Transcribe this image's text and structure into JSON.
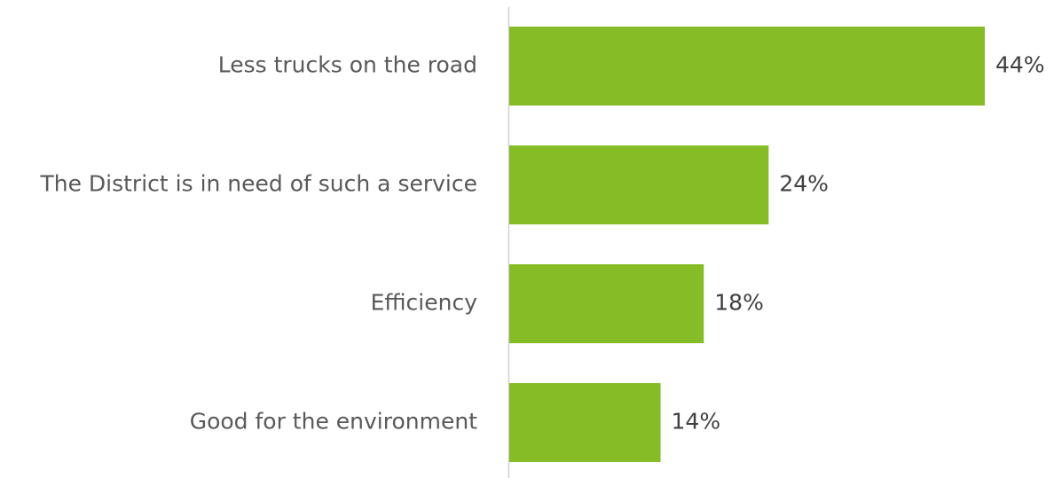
{
  "chart_data": {
    "type": "bar",
    "orientation": "horizontal",
    "categories": [
      "Less trucks on the road",
      "The District is in need of such a service",
      "Efficiency",
      "Good for the environment"
    ],
    "values": [
      44,
      24,
      18,
      14
    ],
    "value_labels": [
      "44%",
      "24%",
      "18%",
      "14%"
    ],
    "color": "#86bc25"
  }
}
